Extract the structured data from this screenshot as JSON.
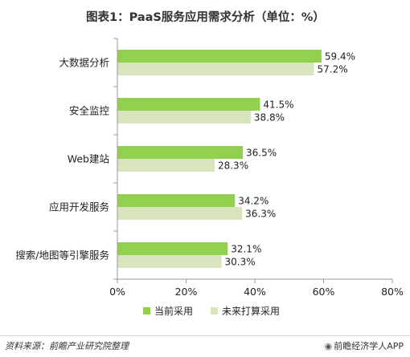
{
  "title": "图表1：PaaS服务应用需求分析（单位：%）",
  "source": "资料来源：前瞻产业研究院整理",
  "brand": "前瞻经济学人APP",
  "brand_icon": "brand-logo-icon",
  "colors": {
    "current": "#92d050",
    "future": "#d8e4bc",
    "axis": "#999999"
  },
  "chart_data": {
    "type": "bar",
    "orientation": "horizontal",
    "title": "图表1：PaaS服务应用需求分析（单位：%）",
    "categories": [
      "大数据分析",
      "安全监控",
      "Web建站",
      "应用开发服务",
      "搜索/地图等引擎服务"
    ],
    "series": [
      {
        "name": "当前采用",
        "values": [
          59.4,
          41.5,
          36.5,
          34.2,
          32.1
        ],
        "labels": [
          "59.4%",
          "41.5%",
          "36.5%",
          "34.2%",
          "32.1%"
        ]
      },
      {
        "name": "未来打算采用",
        "values": [
          57.2,
          38.8,
          28.3,
          36.3,
          30.3
        ],
        "labels": [
          "57.2%",
          "38.8%",
          "28.3%",
          "36.3%",
          "30.3%"
        ]
      }
    ],
    "xlim": [
      0,
      80
    ],
    "xticks": [
      "0%",
      "20%",
      "40%",
      "60%",
      "80%"
    ],
    "grid": false,
    "legend": "bottom"
  }
}
